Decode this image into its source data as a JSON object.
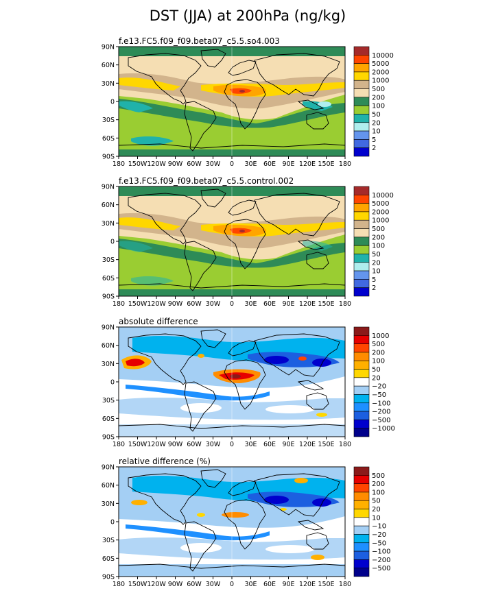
{
  "title": "DST (JJA) at 200hPa (ng/kg)",
  "lat_labels": [
    "90N",
    "60N",
    "30N",
    "0",
    "30S",
    "60S",
    "90S"
  ],
  "lon_labels": [
    "180",
    "150W",
    "120W",
    "90W",
    "60W",
    "30W",
    "0",
    "30E",
    "60E",
    "90E",
    "120E",
    "150E",
    "180"
  ],
  "panels": [
    {
      "name": "f.e13.FC5.f09_f09.beta07_c5.5.so4.003",
      "palette": "dust",
      "colorbar": {
        "labels": [
          "10000",
          "5000",
          "2000",
          "1000",
          "500",
          "200",
          "100",
          "50",
          "20",
          "10",
          "5",
          "2"
        ],
        "colors": [
          "#a52a2a",
          "#ff4500",
          "#ffa500",
          "#ffd700",
          "#d2b48c",
          "#f5deb3",
          "#2e8b57",
          "#9acd32",
          "#20b2aa",
          "#afeeee",
          "#6495ed",
          "#4169e1",
          "#0000cd"
        ]
      }
    },
    {
      "name": "f.e13.FC5.f09_f09.beta07_c5.5.control.002",
      "palette": "dust",
      "colorbar": {
        "labels": [
          "10000",
          "5000",
          "2000",
          "1000",
          "500",
          "200",
          "100",
          "50",
          "20",
          "10",
          "5",
          "2"
        ],
        "colors": [
          "#a52a2a",
          "#ff4500",
          "#ffa500",
          "#ffd700",
          "#d2b48c",
          "#f5deb3",
          "#2e8b57",
          "#9acd32",
          "#20b2aa",
          "#afeeee",
          "#6495ed",
          "#4169e1",
          "#0000cd"
        ]
      }
    },
    {
      "name": "absolute difference",
      "palette": "diff",
      "colorbar": {
        "labels": [
          "1000",
          "500",
          "200",
          "100",
          "50",
          "20",
          "−20",
          "−50",
          "−100",
          "−200",
          "−500",
          "−1000"
        ],
        "colors": [
          "#8b1a1a",
          "#e60000",
          "#ff4500",
          "#ff8c00",
          "#ffb000",
          "#ffd700",
          "#ffffff",
          "#a4cff4",
          "#00b2ee",
          "#1e90ff",
          "#1c5fe0",
          "#0000cd",
          "#00008b"
        ]
      }
    },
    {
      "name": "relative difference (%)",
      "palette": "diff",
      "colorbar": {
        "labels": [
          "500",
          "200",
          "100",
          "50",
          "20",
          "10",
          "−10",
          "−20",
          "−50",
          "−100",
          "−200",
          "−500"
        ],
        "colors": [
          "#8b1a1a",
          "#e60000",
          "#ff4500",
          "#ff8c00",
          "#ffb000",
          "#ffd700",
          "#ffffff",
          "#a4cff4",
          "#00b2ee",
          "#1e90ff",
          "#1c5fe0",
          "#0000cd",
          "#00008b"
        ]
      }
    }
  ]
}
